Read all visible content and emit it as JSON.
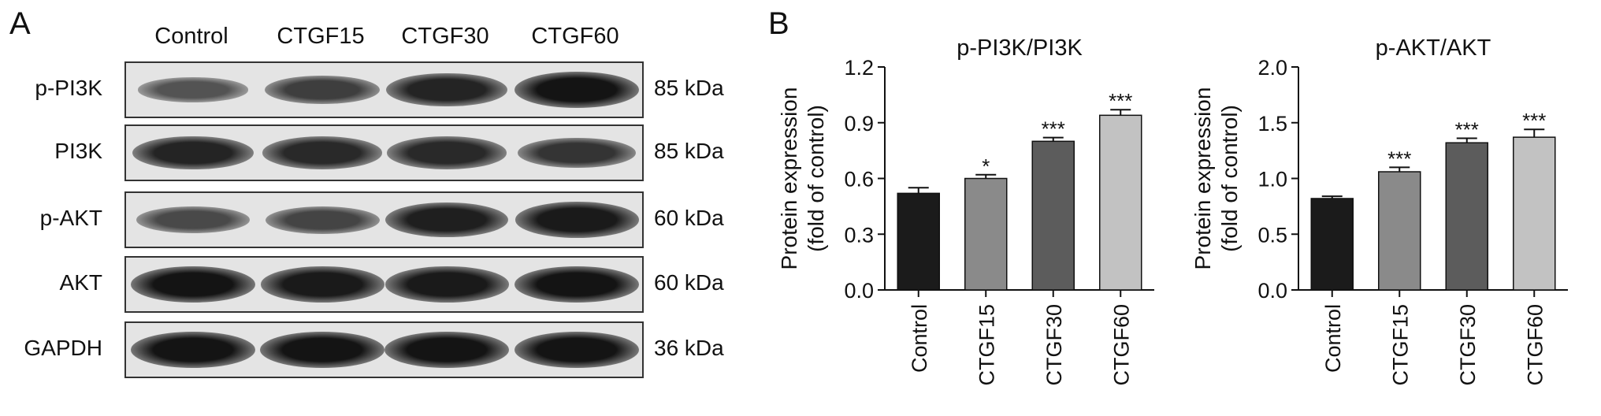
{
  "panel_a": {
    "letter": "A",
    "lanes": [
      "Control",
      "CTGF15",
      "CTGF30",
      "CTGF60"
    ],
    "rows": [
      {
        "name": "p-PI3K",
        "kda": "85 kDa",
        "intensity": [
          0.35,
          0.55,
          0.8,
          0.95
        ]
      },
      {
        "name": "PI3K",
        "kda": "85 kDa",
        "intensity": [
          0.8,
          0.75,
          0.75,
          0.65
        ]
      },
      {
        "name": "p-AKT",
        "kda": "60 kDa",
        "intensity": [
          0.45,
          0.5,
          0.85,
          0.9
        ]
      },
      {
        "name": "AKT",
        "kda": "60 kDa",
        "intensity": [
          0.95,
          0.9,
          0.9,
          0.95
        ]
      },
      {
        "name": "GAPDH",
        "kda": "36 kDa",
        "intensity": [
          0.95,
          0.95,
          0.95,
          0.95
        ]
      }
    ]
  },
  "panel_b": {
    "letter": "B"
  },
  "chart_data": [
    {
      "type": "bar",
      "title": "p-PI3K/PI3K",
      "ylabel_line1": "Protein expression",
      "ylabel_line2": "(fold of control)",
      "categories": [
        "Control",
        "CTGF15",
        "CTGF30",
        "CTGF60"
      ],
      "values": [
        0.52,
        0.6,
        0.8,
        0.94
      ],
      "errors": [
        0.03,
        0.02,
        0.02,
        0.03
      ],
      "significance": [
        "",
        "*",
        "***",
        "***"
      ],
      "ylim": [
        0,
        1.2
      ],
      "yticks": [
        "0.0",
        "0.3",
        "0.6",
        "0.9",
        "1.2"
      ],
      "bar_colors": [
        "#1b1b1b",
        "#8a8a8a",
        "#5c5c5c",
        "#c2c2c2"
      ],
      "grid": false
    },
    {
      "type": "bar",
      "title": "p-AKT/AKT",
      "ylabel_line1": "Protein expression",
      "ylabel_line2": "(fold of control)",
      "categories": [
        "Control",
        "CTGF15",
        "CTGF30",
        "CTGF60"
      ],
      "values": [
        0.82,
        1.06,
        1.32,
        1.37
      ],
      "errors": [
        0.02,
        0.04,
        0.04,
        0.07
      ],
      "significance": [
        "",
        "***",
        "***",
        "***"
      ],
      "ylim": [
        0,
        2.0
      ],
      "yticks": [
        "0.0",
        "0.5",
        "1.0",
        "1.5",
        "2.0"
      ],
      "bar_colors": [
        "#1b1b1b",
        "#8a8a8a",
        "#5c5c5c",
        "#c2c2c2"
      ],
      "grid": false
    }
  ]
}
